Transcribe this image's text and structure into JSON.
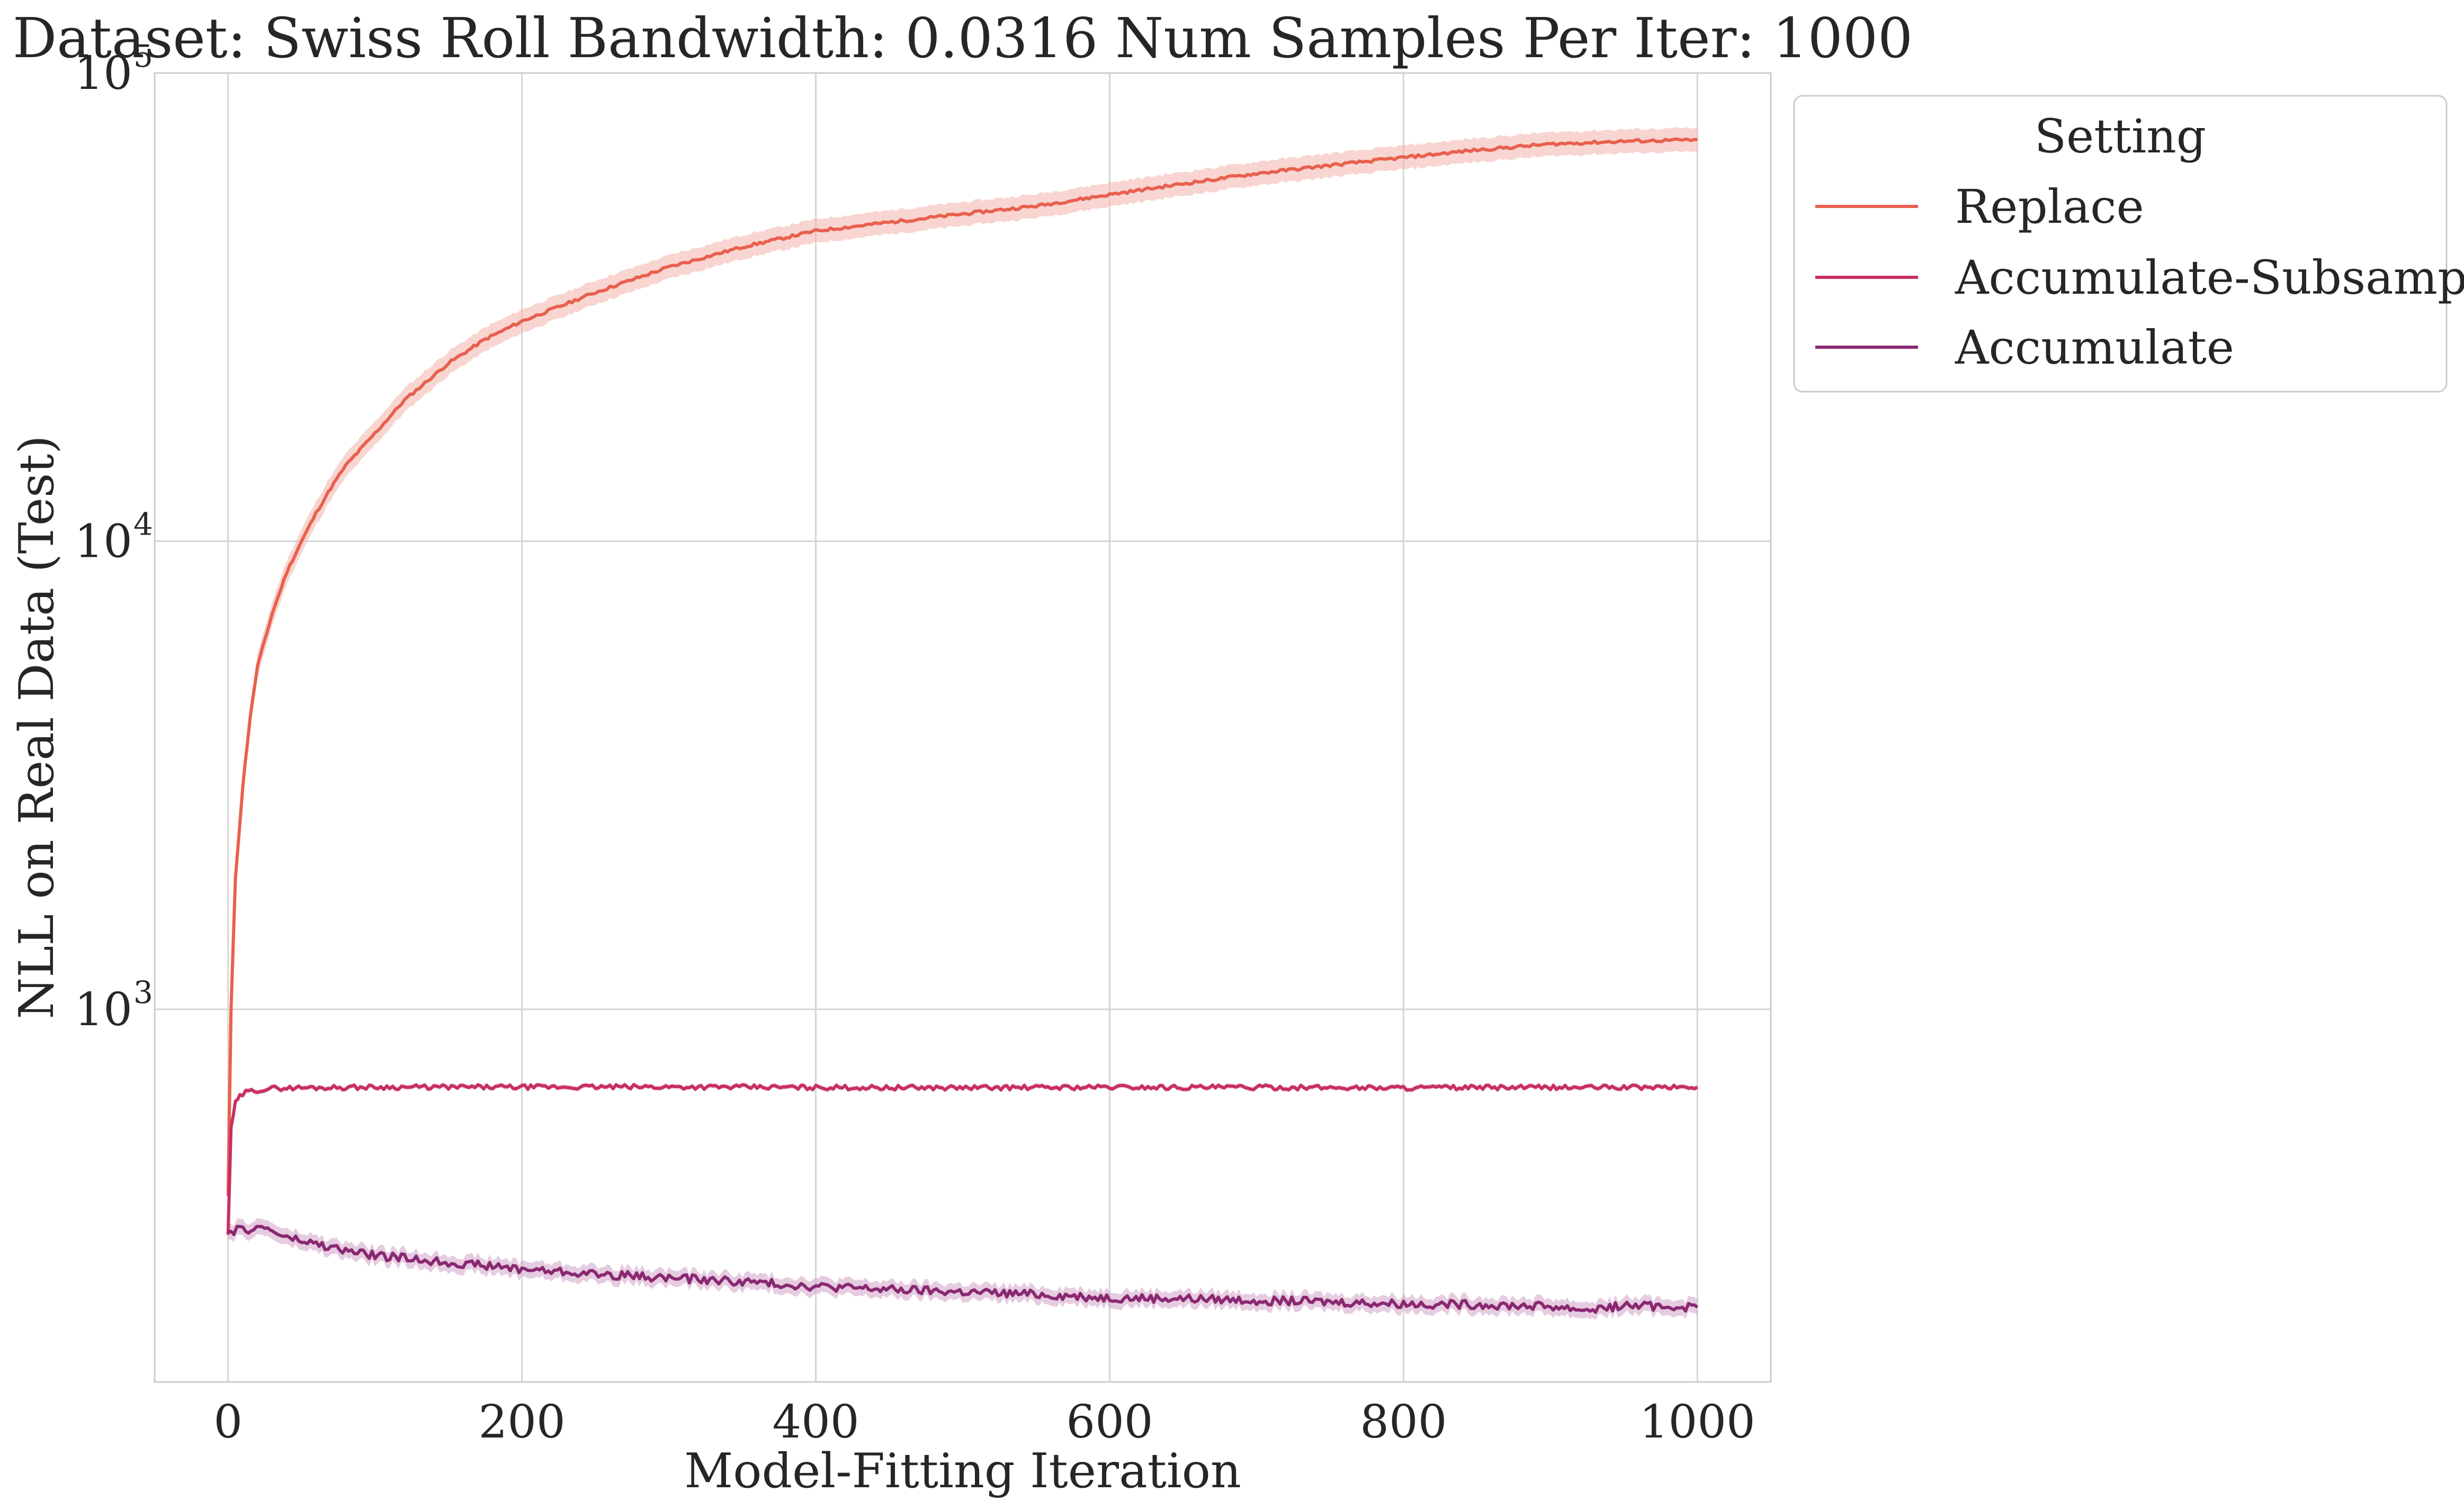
{
  "chart_data": {
    "type": "line",
    "title": "Dataset: Swiss Roll Bandwidth: 0.0316 Num Samples Per Iter: 1000",
    "xlabel": "Model-Fitting Iteration",
    "ylabel": "NLL on Real Data (Test)",
    "xlim": [
      -50,
      1050
    ],
    "ylim": [
      160,
      100000
    ],
    "yscale": "log",
    "grid": true,
    "x_ticks": [
      0,
      200,
      400,
      600,
      800,
      1000
    ],
    "x_tick_labels": [
      "0",
      "200",
      "400",
      "600",
      "800",
      "1000"
    ],
    "y_ticks": [
      {
        "value": 1000,
        "base": "10",
        "exp": "3"
      },
      {
        "value": 10000,
        "base": "10",
        "exp": "4"
      },
      {
        "value": 100000,
        "base": "10",
        "exp": "5"
      }
    ],
    "legend": {
      "title": "Setting",
      "position": "outside-top-right"
    },
    "series": [
      {
        "name": "Replace",
        "color": "#e8604e",
        "band_color": "#f2b2aa",
        "x": [
          0,
          2,
          5,
          10,
          15,
          20,
          30,
          40,
          50,
          60,
          70,
          80,
          100,
          120,
          150,
          175,
          200,
          250,
          300,
          350,
          400,
          450,
          500,
          550,
          600,
          650,
          700,
          750,
          800,
          850,
          900,
          950,
          1000
        ],
        "y": [
          400,
          1000,
          1900,
          3000,
          4200,
          5400,
          7000,
          8600,
          10000,
          11500,
          13000,
          14500,
          17000,
          20000,
          24000,
          27000,
          29500,
          34000,
          38500,
          42500,
          46000,
          48000,
          50000,
          52000,
          55000,
          58000,
          61000,
          63500,
          66000,
          68500,
          70500,
          71500,
          72000
        ],
        "band_rel": 0.06
      },
      {
        "name": "Accumulate-Subsample",
        "color": "#c72f63",
        "band_color": "#e89bb4",
        "x": [
          0,
          2,
          5,
          8,
          12,
          20,
          30,
          50,
          100,
          200,
          300,
          400,
          500,
          600,
          700,
          800,
          900,
          1000
        ],
        "y": [
          330,
          560,
          630,
          650,
          665,
          672,
          678,
          680,
          682,
          682,
          683,
          681,
          680,
          682,
          681,
          680,
          681,
          682
        ],
        "band_rel": 0.012
      },
      {
        "name": "Accumulate",
        "color": "#8a2872",
        "band_color": "#d2a3c6",
        "x": [
          0,
          10,
          25,
          40,
          60,
          80,
          100,
          150,
          200,
          250,
          300,
          350,
          400,
          450,
          500,
          550,
          600,
          650,
          700,
          750,
          800,
          850,
          900,
          925,
          950,
          1000
        ],
        "y": [
          335,
          338,
          342,
          325,
          315,
          305,
          298,
          288,
          279,
          272,
          267,
          262,
          256,
          252,
          249,
          246,
          242,
          241,
          239,
          237,
          235,
          234,
          232,
          228,
          233,
          231
        ],
        "band_rel": 0.04
      }
    ]
  }
}
